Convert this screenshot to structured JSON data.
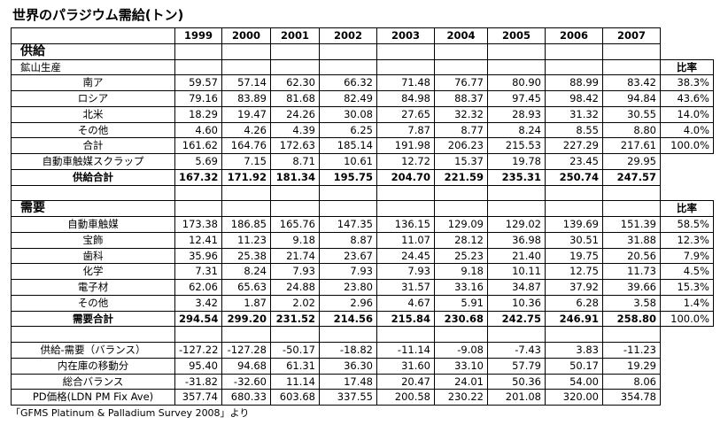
{
  "title": "世界のパラジウム需給(トン)",
  "table": {
    "header": [
      "1999",
      "2000",
      "2001",
      "2002",
      "2003",
      "2004",
      "2005",
      "2006",
      "2007"
    ],
    "rows": [
      {
        "label": "供給"
      },
      {
        "label": "鉱山生産",
        "share": "比率"
      },
      {
        "label": "南ア",
        "values": [
          "59.57",
          "57.14",
          "62.30",
          "66.32",
          "71.48",
          "76.77",
          "80.90",
          "88.99",
          "83.42"
        ],
        "share": "38.3%"
      },
      {
        "label": "ロシア",
        "values": [
          "79.16",
          "83.89",
          "81.68",
          "82.49",
          "84.98",
          "88.37",
          "97.45",
          "98.42",
          "94.84"
        ],
        "share": "43.6%"
      },
      {
        "label": "北米",
        "values": [
          "18.29",
          "19.47",
          "24.26",
          "30.08",
          "27.65",
          "32.32",
          "28.93",
          "31.32",
          "30.55"
        ],
        "share": "14.0%"
      },
      {
        "label": "その他",
        "values": [
          "4.60",
          "4.26",
          "4.39",
          "6.25",
          "7.87",
          "8.77",
          "8.24",
          "8.55",
          "8.80"
        ],
        "share": "4.0%"
      },
      {
        "label": "合計",
        "values": [
          "161.62",
          "164.76",
          "172.63",
          "185.14",
          "191.98",
          "206.23",
          "215.53",
          "227.29",
          "217.61"
        ],
        "share": "100.0%"
      },
      {
        "label": "自動車触媒スクラップ",
        "values": [
          "5.69",
          "7.15",
          "8.71",
          "10.61",
          "12.72",
          "15.37",
          "19.78",
          "23.45",
          "29.95"
        ]
      },
      {
        "label": "供給合計",
        "values": [
          "167.32",
          "171.92",
          "181.34",
          "195.75",
          "204.70",
          "221.59",
          "235.31",
          "250.74",
          "247.57"
        ]
      },
      {},
      {
        "label": "需要",
        "share": "比率"
      },
      {
        "label": "自動車触媒",
        "values": [
          "173.38",
          "186.85",
          "165.76",
          "147.35",
          "136.15",
          "129.09",
          "129.02",
          "139.69",
          "151.39"
        ],
        "share": "58.5%"
      },
      {
        "label": "宝飾",
        "values": [
          "12.41",
          "11.23",
          "9.18",
          "8.87",
          "11.07",
          "28.12",
          "36.98",
          "30.51",
          "31.88"
        ],
        "share": "12.3%"
      },
      {
        "label": "歯科",
        "values": [
          "35.96",
          "25.38",
          "21.74",
          "23.67",
          "24.45",
          "25.23",
          "21.40",
          "19.75",
          "20.56"
        ],
        "share": "7.9%"
      },
      {
        "label": "化学",
        "values": [
          "7.31",
          "8.24",
          "7.93",
          "7.93",
          "7.93",
          "9.18",
          "10.11",
          "12.75",
          "11.73"
        ],
        "share": "4.5%"
      },
      {
        "label": "電子材",
        "values": [
          "62.06",
          "65.63",
          "24.88",
          "23.80",
          "31.57",
          "33.16",
          "34.87",
          "37.92",
          "39.66"
        ],
        "share": "15.3%"
      },
      {
        "label": "その他",
        "values": [
          "3.42",
          "1.87",
          "2.02",
          "2.96",
          "4.67",
          "5.91",
          "10.36",
          "6.28",
          "3.58"
        ],
        "share": "1.4%"
      },
      {
        "label": "需要合計",
        "values": [
          "294.54",
          "299.20",
          "231.52",
          "214.56",
          "215.84",
          "230.68",
          "242.75",
          "246.91",
          "258.80"
        ],
        "share": "100.0%"
      },
      {},
      {
        "label": "供給-需要（バランス）",
        "values": [
          "-127.22",
          "-127.28",
          "-50.17",
          "-18.82",
          "-11.14",
          "-9.08",
          "-7.43",
          "3.83",
          "-11.23"
        ]
      },
      {
        "label": "内在庫の移動分",
        "values": [
          "95.40",
          "94.68",
          "61.31",
          "36.30",
          "31.60",
          "33.10",
          "57.79",
          "50.17",
          "19.29"
        ]
      },
      {
        "label": "総合バランス",
        "values": [
          "-31.82",
          "-32.60",
          "11.14",
          "17.48",
          "20.47",
          "24.01",
          "50.36",
          "54.00",
          "8.06"
        ]
      },
      {
        "label": "PD価格(LDN PM Fix Ave)",
        "values": [
          "357.74",
          "680.33",
          "603.68",
          "337.55",
          "200.58",
          "230.22",
          "201.08",
          "320.00",
          "354.78"
        ]
      }
    ]
  },
  "footnote": "「GFMS Platinum & Palladium Survey 2008」より"
}
